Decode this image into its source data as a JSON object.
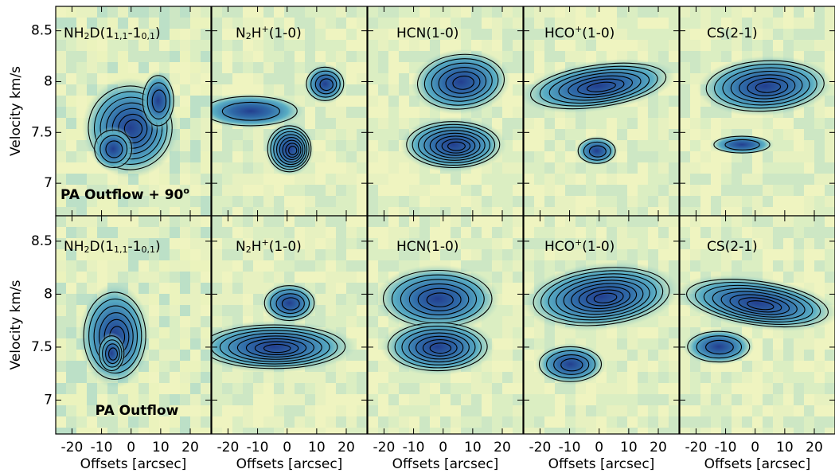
{
  "chart_data": {
    "type": "pv-diagram-grid",
    "xlabel": "Offsets [arcsec]",
    "ylabel": "Velocity km/s",
    "xlim": [
      -25.5,
      27
    ],
    "xticks": [
      -20,
      -10,
      0,
      10,
      20
    ],
    "ylim": [
      6.68,
      8.74
    ],
    "yticks": [
      7,
      7.5,
      8,
      8.5
    ],
    "panel_labels": [
      [
        {
          "t": "NH"
        },
        {
          "t": "2",
          "sub": true
        },
        {
          "t": "D(1"
        },
        {
          "t": "1,1",
          "sub": true
        },
        {
          "t": "-1"
        },
        {
          "t": "0,1",
          "sub": true
        },
        {
          "t": ")"
        }
      ],
      [
        {
          "t": "N"
        },
        {
          "t": "2",
          "sub": true
        },
        {
          "t": "H"
        },
        {
          "t": "+",
          "sup": true
        },
        {
          "t": "(1-0)"
        }
      ],
      [
        {
          "t": "HCN(1-0)"
        }
      ],
      [
        {
          "t": "HCO"
        },
        {
          "t": "+",
          "sup": true
        },
        {
          "t": "(1-0)"
        }
      ],
      [
        {
          "t": "CS(2-1)"
        }
      ]
    ],
    "row_labels": [
      [
        {
          "t": "PA Outflow + 90"
        },
        {
          "t": "o",
          "sup": true
        }
      ],
      [
        {
          "t": "PA Outflow"
        }
      ]
    ]
  }
}
